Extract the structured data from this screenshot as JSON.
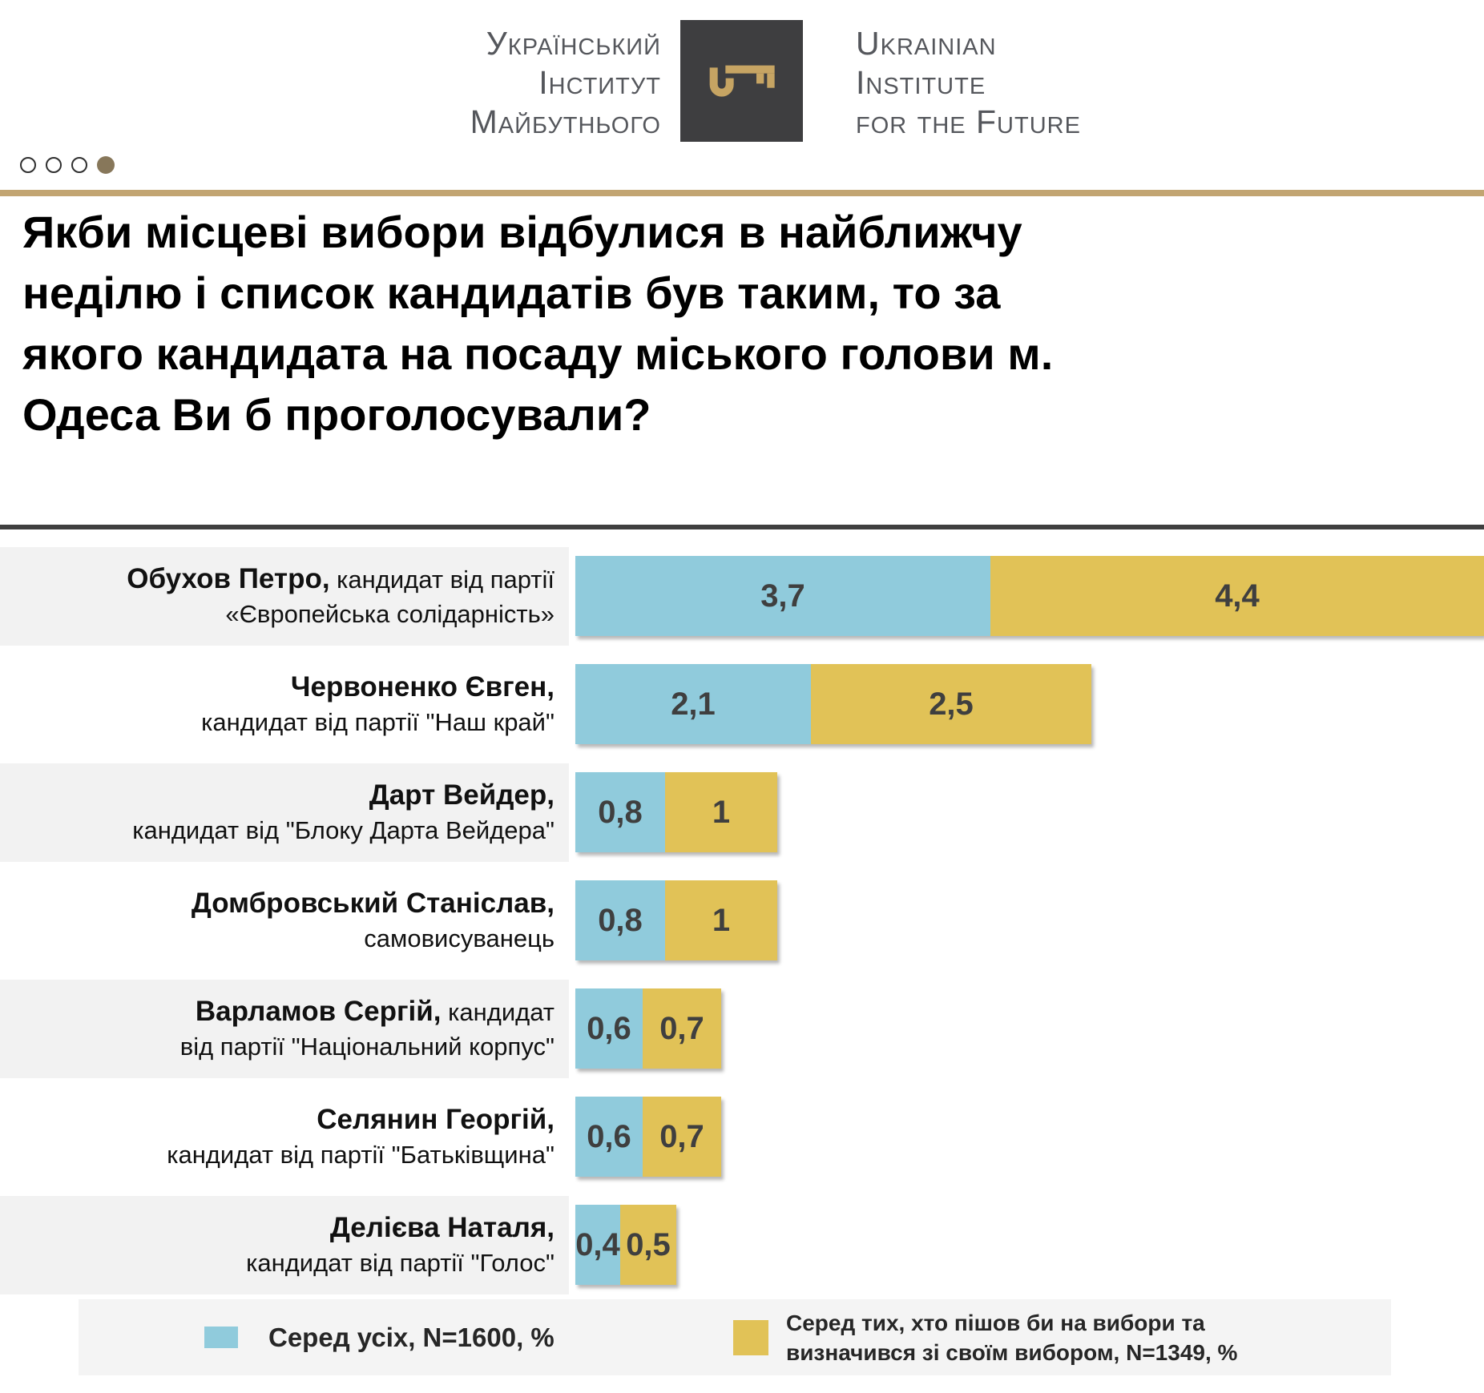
{
  "brand": {
    "name_uk_lines": [
      "Український",
      "Інститут",
      "Майбутнього"
    ],
    "name_en_lines": [
      "Ukrainian",
      "Institute",
      "for the Future"
    ],
    "logo_icon": "key-icon"
  },
  "pagination": {
    "dots_total": 4,
    "active_index": 3
  },
  "title": "Якби місцеві вибори відбулися в найближчу неділю і список кандидатів був таким, то за якого кандидата на посаду міського голови м. Одеса Ви б проголосували?",
  "title_lines": [
    "Якби місцеві вибори відбулися в найближчу",
    "неділю і список кандидатів був таким, то за",
    "якого кандидата на посаду міського голови м.",
    "Одеса Ви б проголосували?"
  ],
  "colors": {
    "series_all": "#90CBDC",
    "series_decided": "#E1C257",
    "rule_gold": "#C2A572",
    "rule_dark": "#3F3F3F",
    "row_band": "#F2F2F2",
    "legend_bg": "#F4F4F4",
    "logo_bg": "#3E3E40",
    "logo_key": "#C6A463",
    "dot_active": "#87775A"
  },
  "chart_data": {
    "type": "bar",
    "orientation": "horizontal",
    "units": "%",
    "value_axis": {
      "min": 0,
      "max_visible": 8.1,
      "gridlines": false,
      "ticks_shown": false
    },
    "legend_position": "bottom",
    "categories": [
      {
        "name": "Обухов Петро,",
        "detail": "кандидат від партії «Європейська солідарність»",
        "label_lines": [
          {
            "bold": "Обухов Петро,",
            "rest": " кандидат від партії"
          },
          {
            "bold": "",
            "rest": "«Європейська солідарність»"
          }
        ]
      },
      {
        "name": "Червоненко Євген,",
        "detail": "кандидат від партії \"Наш край\"",
        "label_lines": [
          {
            "bold": "Червоненко Євген,",
            "rest": ""
          },
          {
            "bold": "",
            "rest": "кандидат від партії \"Наш край\""
          }
        ]
      },
      {
        "name": "Дарт Вейдер,",
        "detail": "кандидат від \"Блоку Дарта Вейдера\"",
        "label_lines": [
          {
            "bold": "Дарт Вейдер,",
            "rest": ""
          },
          {
            "bold": "",
            "rest": "кандидат від \"Блоку Дарта Вейдера\""
          }
        ]
      },
      {
        "name": "Домбровський Станіслав,",
        "detail": "самовисуванець",
        "label_lines": [
          {
            "bold": "Домбровський Станіслав,",
            "rest": ""
          },
          {
            "bold": "",
            "rest": "самовисуванець"
          }
        ]
      },
      {
        "name": "Варламов Сергій,",
        "detail": "кандидат від партії \"Національний корпус\"",
        "label_lines": [
          {
            "bold": "Варламов Сергій,",
            "rest": " кандидат"
          },
          {
            "bold": "",
            "rest": "від партії \"Національний корпус\""
          }
        ]
      },
      {
        "name": "Селянин Георгій,",
        "detail": "кандидат від партії \"Батьківщина\"",
        "label_lines": [
          {
            "bold": "Селянин Георгій,",
            "rest": ""
          },
          {
            "bold": "",
            "rest": "кандидат від партії \"Батьківщина\""
          }
        ]
      },
      {
        "name": "Делієва Наталя,",
        "detail": "кандидат від партії \"Голос\"",
        "label_lines": [
          {
            "bold": "Делієва Наталя,",
            "rest": ""
          },
          {
            "bold": "",
            "rest": "кандидат від партії \"Голос\""
          }
        ]
      }
    ],
    "series": [
      {
        "name": "Серед усіх, N=1600, %",
        "color": "#90CBDC",
        "values": [
          3.7,
          2.1,
          0.8,
          0.8,
          0.6,
          0.6,
          0.4
        ],
        "value_labels": [
          "3,7",
          "2,1",
          "0,8",
          "0,8",
          "0,6",
          "0,6",
          "0,4"
        ]
      },
      {
        "name": "Серед тих, хто пішов би на вибори та визначився зі своїм вибором, N=1349, %",
        "color": "#E1C257",
        "values": [
          4.4,
          2.5,
          1,
          1,
          0.7,
          0.7,
          0.5
        ],
        "value_labels": [
          "4,4",
          "2,5",
          "1",
          "1",
          "0,7",
          "0,7",
          "0,5"
        ]
      }
    ],
    "legend": [
      {
        "label": "Серед усіх, N=1600, %",
        "color": "#90CBDC"
      },
      {
        "label": "Серед тих, хто пішов би на вибори та визначився зі своїм вибором, N=1349, %",
        "color": "#E1C257"
      }
    ]
  }
}
